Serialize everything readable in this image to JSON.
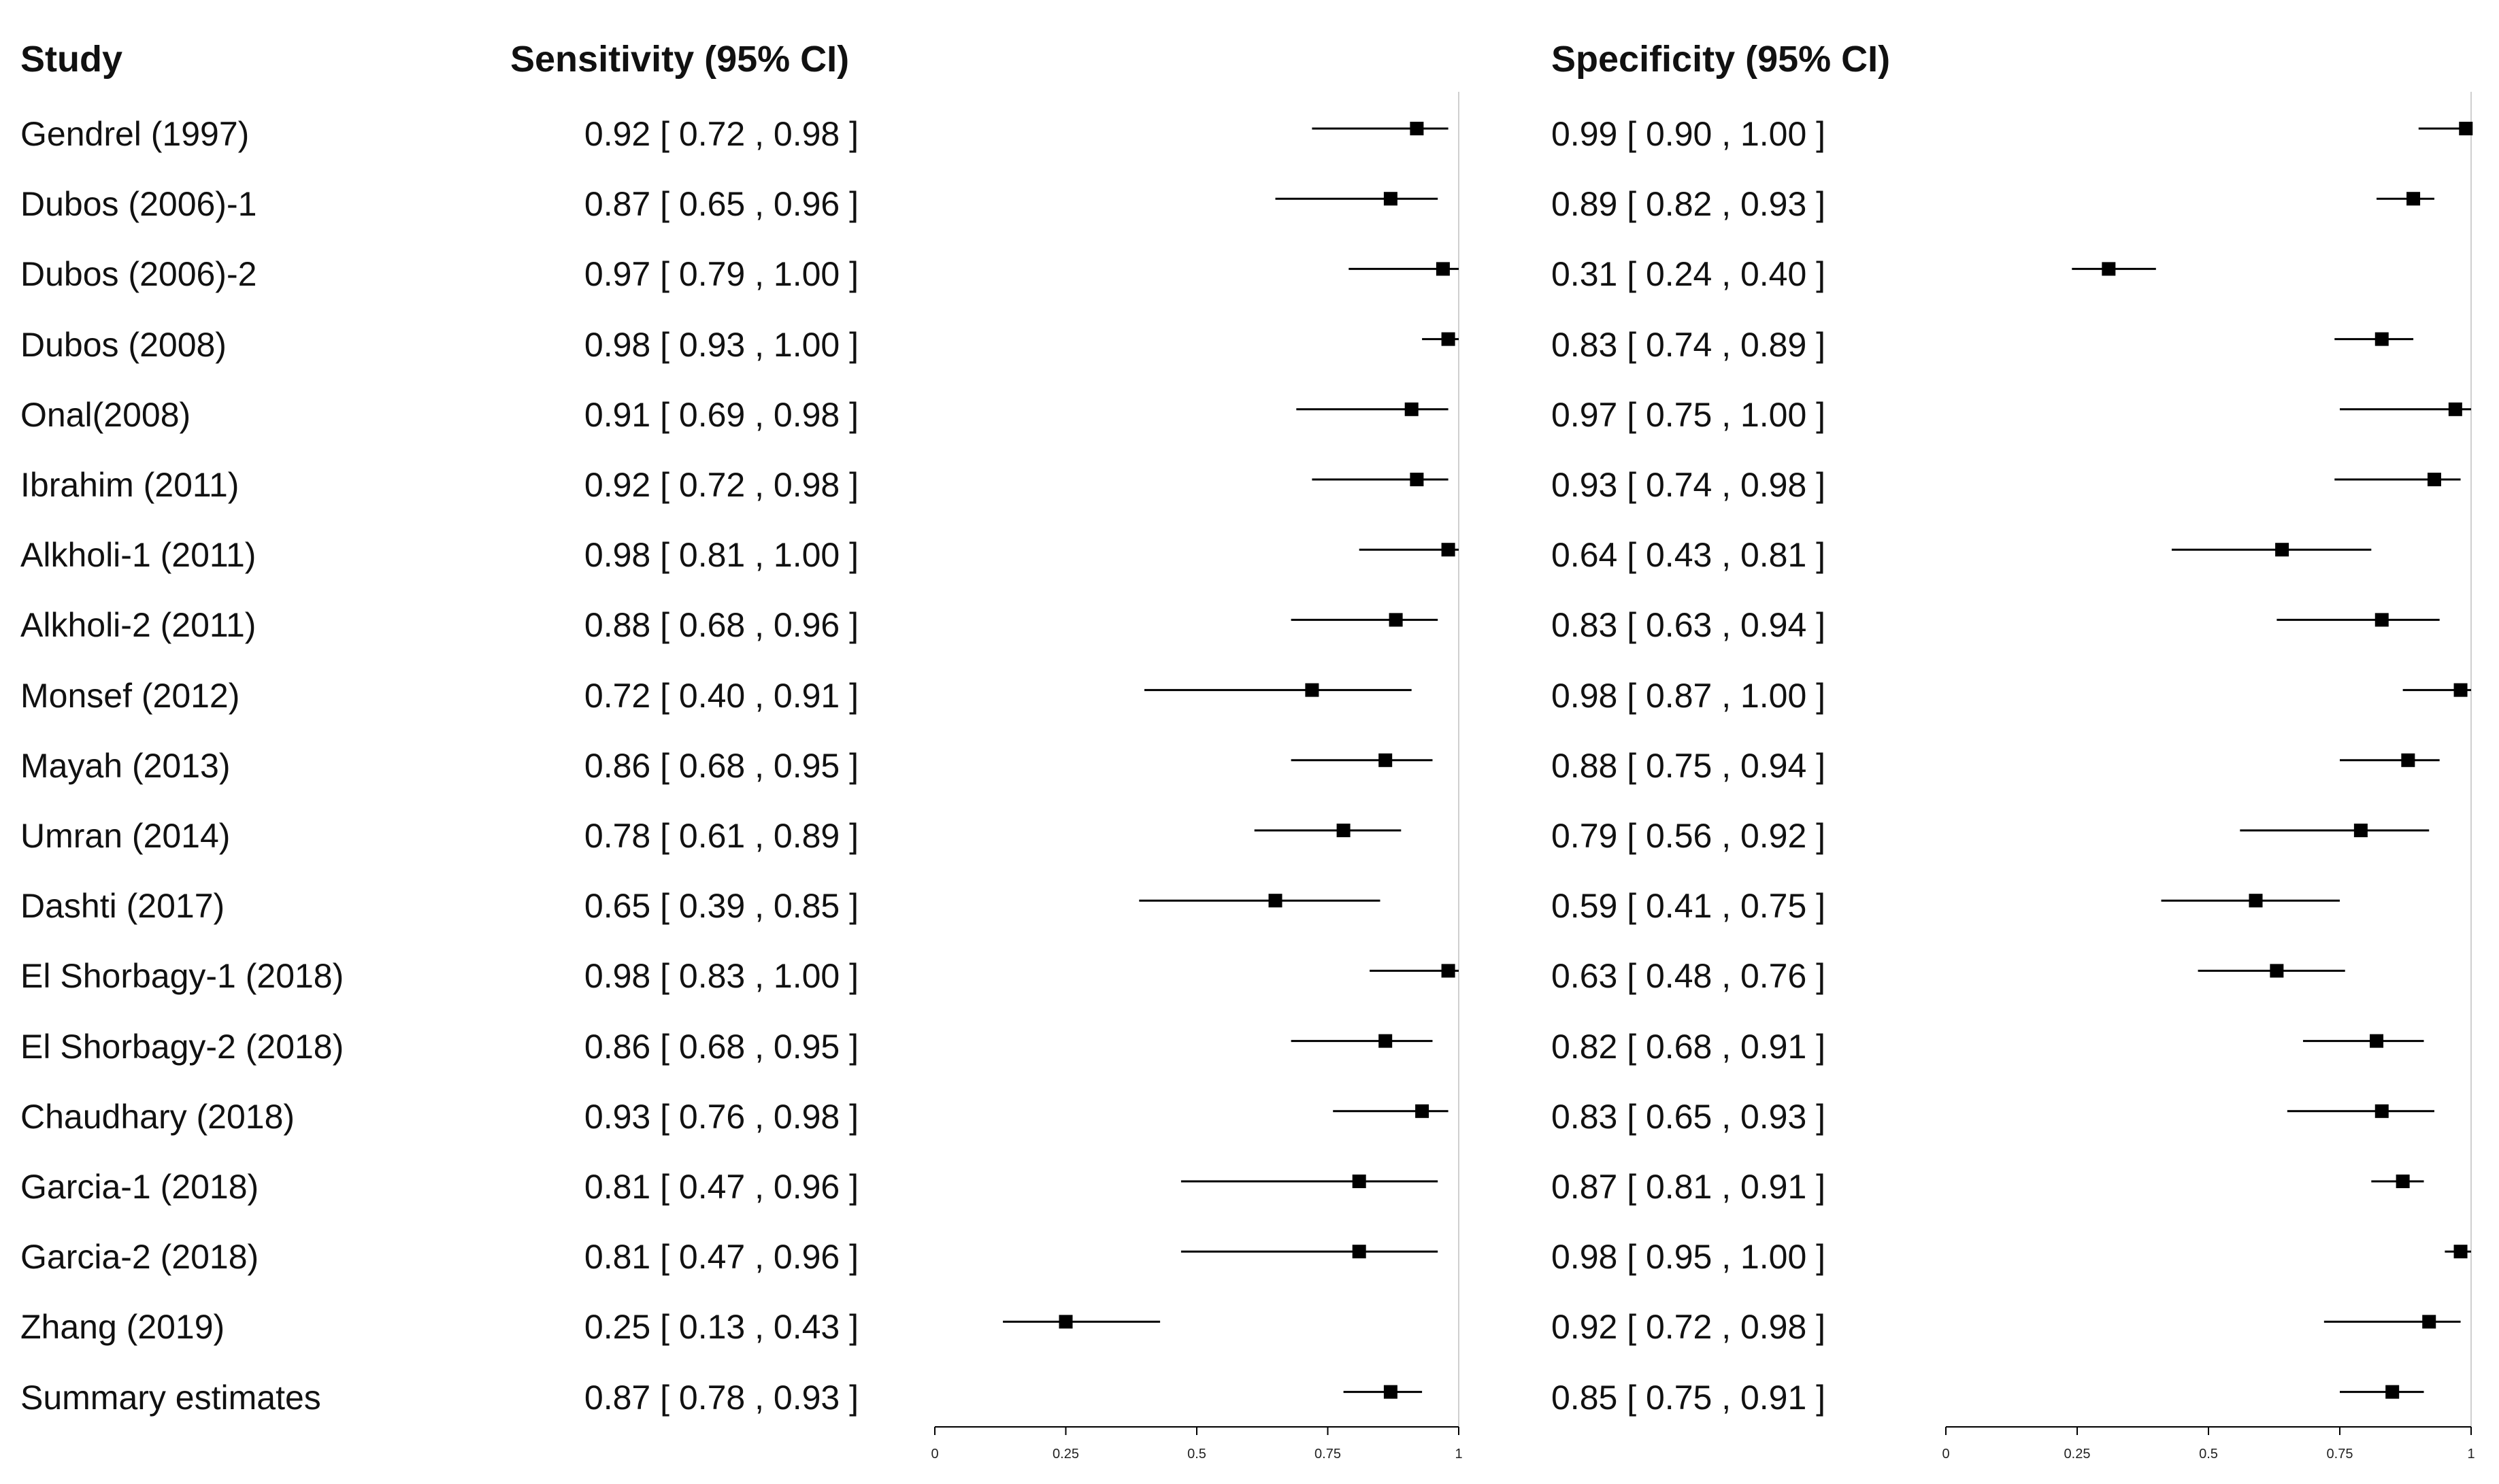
{
  "headers": {
    "study": "Study",
    "sensitivity": "Sensitivity (95% CI)",
    "specificity": "Specificity (95% CI)"
  },
  "rows": [
    {
      "study": "Gendrel (1997)",
      "sens_text": "0.92 [ 0.72 , 0.98 ]",
      "spec_text": "0.99 [ 0.90 , 1.00 ]"
    },
    {
      "study": "Dubos (2006)-1",
      "sens_text": "0.87 [ 0.65 , 0.96 ]",
      "spec_text": "0.89 [ 0.82 , 0.93 ]"
    },
    {
      "study": "Dubos (2006)-2",
      "sens_text": "0.97 [ 0.79 , 1.00 ]",
      "spec_text": "0.31 [ 0.24 , 0.40 ]"
    },
    {
      "study": "Dubos (2008)",
      "sens_text": "0.98 [ 0.93 , 1.00 ]",
      "spec_text": "0.83 [ 0.74 , 0.89 ]"
    },
    {
      "study": "Onal(2008)",
      "sens_text": "0.91 [ 0.69 , 0.98 ]",
      "spec_text": "0.97 [ 0.75 , 1.00 ]"
    },
    {
      "study": "Ibrahim (2011)",
      "sens_text": "0.92 [ 0.72 , 0.98 ]",
      "spec_text": "0.93 [ 0.74 , 0.98 ]"
    },
    {
      "study": "Alkholi-1 (2011)",
      "sens_text": "0.98 [ 0.81 , 1.00 ]",
      "spec_text": "0.64 [ 0.43 , 0.81 ]"
    },
    {
      "study": "Alkholi-2 (2011)",
      "sens_text": "0.88 [ 0.68 , 0.96 ]",
      "spec_text": "0.83 [ 0.63 , 0.94 ]"
    },
    {
      "study": "Monsef (2012)",
      "sens_text": "0.72 [ 0.40 , 0.91 ]",
      "spec_text": "0.98 [ 0.87 , 1.00 ]"
    },
    {
      "study": "Mayah (2013)",
      "sens_text": "0.86 [ 0.68 , 0.95 ]",
      "spec_text": "0.88 [ 0.75 , 0.94 ]"
    },
    {
      "study": "Umran (2014)",
      "sens_text": "0.78 [ 0.61 , 0.89 ]",
      "spec_text": "0.79 [ 0.56 , 0.92 ]"
    },
    {
      "study": "Dashti (2017)",
      "sens_text": "0.65 [ 0.39 , 0.85 ]",
      "spec_text": "0.59 [ 0.41 , 0.75 ]"
    },
    {
      "study": "El Shorbagy-1 (2018)",
      "sens_text": "0.98 [ 0.83 , 1.00 ]",
      "spec_text": "0.63 [ 0.48 , 0.76 ]"
    },
    {
      "study": "El Shorbagy-2 (2018)",
      "sens_text": "0.86 [ 0.68 , 0.95 ]",
      "spec_text": "0.82 [ 0.68 , 0.91 ]"
    },
    {
      "study": "Chaudhary (2018)",
      "sens_text": "0.93 [ 0.76 , 0.98 ]",
      "spec_text": "0.83 [ 0.65 , 0.93 ]"
    },
    {
      "study": "Garcia-1 (2018)",
      "sens_text": "0.81 [ 0.47 , 0.96 ]",
      "spec_text": "0.87 [ 0.81 , 0.91 ]"
    },
    {
      "study": "Garcia-2 (2018)",
      "sens_text": "0.81 [ 0.47 , 0.96 ]",
      "spec_text": "0.98 [ 0.95 , 1.00 ]"
    },
    {
      "study": "Zhang (2019)",
      "sens_text": "0.25 [ 0.13 , 0.43 ]",
      "spec_text": "0.92 [ 0.72 , 0.98 ]"
    },
    {
      "study": "Summary estimates",
      "sens_text": "0.87 [ 0.78 , 0.93 ]",
      "spec_text": "0.85 [ 0.75 , 0.91 ]"
    }
  ],
  "chart_data": {
    "type": "forest",
    "title": "",
    "x_range": [
      0,
      1
    ],
    "tick_values": [
      0,
      0.25,
      0.5,
      0.75,
      1
    ],
    "tick_labels": [
      "0",
      "0.25",
      "0.5",
      "0.75",
      "1"
    ],
    "studies": [
      "Gendrel (1997)",
      "Dubos (2006)-1",
      "Dubos (2006)-2",
      "Dubos (2008)",
      "Onal(2008)",
      "Ibrahim (2011)",
      "Alkholi-1 (2011)",
      "Alkholi-2 (2011)",
      "Monsef (2012)",
      "Mayah (2013)",
      "Umran (2014)",
      "Dashti (2017)",
      "El Shorbagy-1 (2018)",
      "El Shorbagy-2 (2018)",
      "Chaudhary (2018)",
      "Garcia-1 (2018)",
      "Garcia-2 (2018)",
      "Zhang (2019)",
      "Summary estimates"
    ],
    "series": [
      {
        "name": "Sensitivity",
        "estimate": [
          0.92,
          0.87,
          0.97,
          0.98,
          0.91,
          0.92,
          0.98,
          0.88,
          0.72,
          0.86,
          0.78,
          0.65,
          0.98,
          0.86,
          0.93,
          0.81,
          0.81,
          0.25,
          0.87
        ],
        "lower": [
          0.72,
          0.65,
          0.79,
          0.93,
          0.69,
          0.72,
          0.81,
          0.68,
          0.4,
          0.68,
          0.61,
          0.39,
          0.83,
          0.68,
          0.76,
          0.47,
          0.47,
          0.13,
          0.78
        ],
        "upper": [
          0.98,
          0.96,
          1.0,
          1.0,
          0.98,
          0.98,
          1.0,
          0.96,
          0.91,
          0.95,
          0.89,
          0.85,
          1.0,
          0.95,
          0.98,
          0.96,
          0.96,
          0.43,
          0.93
        ]
      },
      {
        "name": "Specificity",
        "estimate": [
          0.99,
          0.89,
          0.31,
          0.83,
          0.97,
          0.93,
          0.64,
          0.83,
          0.98,
          0.88,
          0.79,
          0.59,
          0.63,
          0.82,
          0.83,
          0.87,
          0.98,
          0.92,
          0.85
        ],
        "lower": [
          0.9,
          0.82,
          0.24,
          0.74,
          0.75,
          0.74,
          0.43,
          0.63,
          0.87,
          0.75,
          0.56,
          0.41,
          0.48,
          0.68,
          0.65,
          0.81,
          0.95,
          0.72,
          0.75
        ],
        "upper": [
          1.0,
          0.93,
          0.4,
          0.89,
          1.0,
          0.98,
          0.81,
          0.94,
          1.0,
          0.94,
          0.92,
          0.75,
          0.76,
          0.91,
          0.93,
          0.91,
          1.0,
          0.98,
          0.91
        ]
      }
    ]
  }
}
